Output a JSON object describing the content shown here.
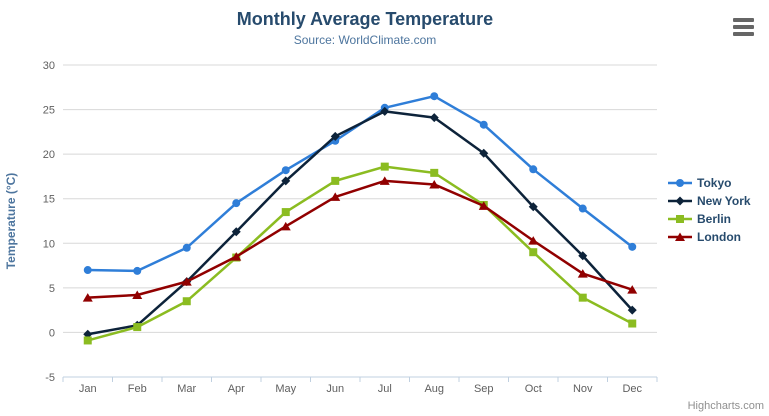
{
  "header": {
    "title": "Monthly Average Temperature",
    "subtitle": "Source: WorldClimate.com"
  },
  "credits": {
    "label": "Highcharts.com"
  },
  "colors": {
    "title": "#274b6d",
    "subtitle": "#4d759e",
    "axis_title": "#4d759e",
    "tick_label": "#606060",
    "grid_line": "#d8d8d8",
    "axis_line": "#c0d0e0",
    "legend_text": "#274b6d",
    "credits": "#909090",
    "menu_icon": "#666666"
  },
  "chart_data": {
    "type": "line",
    "title": "Monthly Average Temperature",
    "subtitle": "Source: WorldClimate.com",
    "xlabel": "",
    "ylabel": "Temperature (°C)",
    "categories": [
      "Jan",
      "Feb",
      "Mar",
      "Apr",
      "May",
      "Jun",
      "Jul",
      "Aug",
      "Sep",
      "Oct",
      "Nov",
      "Dec"
    ],
    "yticks": [
      -5,
      0,
      5,
      10,
      15,
      20,
      25,
      30
    ],
    "ylim": [
      -5,
      30
    ],
    "grid": true,
    "legend_position": "right-middle",
    "series": [
      {
        "name": "Tokyo",
        "color": "#2f7ed8",
        "marker": "circle",
        "values": [
          7.0,
          6.9,
          9.5,
          14.5,
          18.2,
          21.5,
          25.2,
          26.5,
          23.3,
          18.3,
          13.9,
          9.6
        ]
      },
      {
        "name": "New York",
        "color": "#0d233a",
        "marker": "diamond",
        "values": [
          -0.2,
          0.8,
          5.7,
          11.3,
          17.0,
          22.0,
          24.8,
          24.1,
          20.1,
          14.1,
          8.6,
          2.5
        ]
      },
      {
        "name": "Berlin",
        "color": "#8bbc21",
        "marker": "square",
        "values": [
          -0.9,
          0.6,
          3.5,
          8.4,
          13.5,
          17.0,
          18.6,
          17.9,
          14.3,
          9.0,
          3.9,
          1.0
        ]
      },
      {
        "name": "London",
        "color": "#910000",
        "marker": "triangle",
        "values": [
          3.9,
          4.2,
          5.7,
          8.5,
          11.9,
          15.2,
          17.0,
          16.6,
          14.2,
          10.3,
          6.6,
          4.8
        ]
      }
    ]
  }
}
